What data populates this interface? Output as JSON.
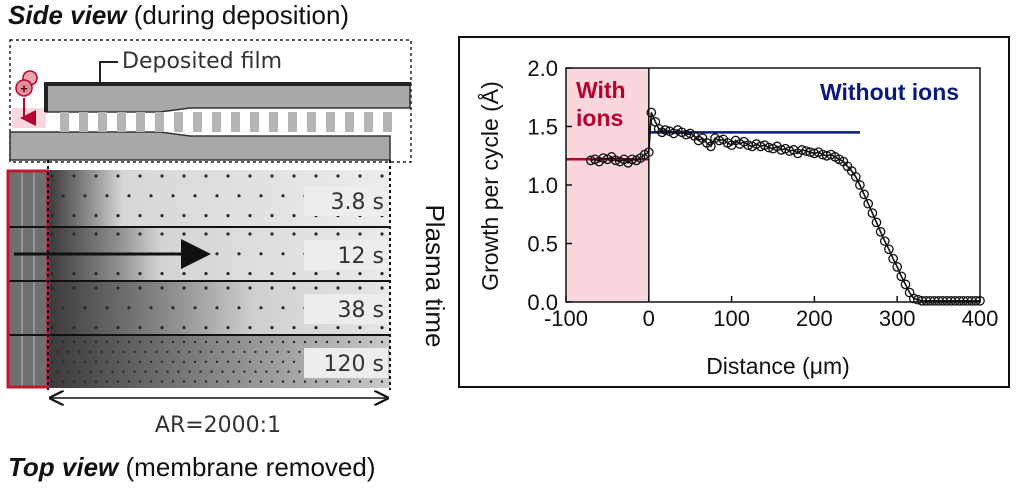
{
  "side_view": {
    "title_bold": "Side view",
    "title_rest": " (during deposition)",
    "film_label": "Deposited film",
    "ion_symbol": "+"
  },
  "top_view": {
    "title_bold": "Top view",
    "title_rest": " (membrane removed)",
    "time_labels": [
      "3.8 s",
      "12 s",
      "38 s",
      "120 s"
    ],
    "side_label": "Plasma time",
    "aspect_ratio": "AR=2000:1"
  },
  "colors": {
    "ions": "#b8002c",
    "no_ions": "#0a1a7a",
    "ion_region": "#f9d7dd",
    "ion_box": "#c2182f",
    "markers": "#111111"
  },
  "chart_data": {
    "type": "scatter",
    "xlabel": "Distance (μm)",
    "ylabel": "Growth per cycle (Å)",
    "xlim": [
      -100,
      400
    ],
    "ylim": [
      0.0,
      2.0
    ],
    "xticks": [
      "-100",
      "0",
      "100",
      "200",
      "300",
      "400"
    ],
    "yticks": [
      "0.0",
      "0.5",
      "1.0",
      "1.5",
      "2.0"
    ],
    "shaded_region": [
      -100,
      0
    ],
    "annotations": {
      "with_ions": [
        "With",
        "ions"
      ],
      "without_ions": "Without ions"
    },
    "reference_lines": [
      {
        "x": [
          -100,
          0
        ],
        "y": 1.22,
        "color": "#b8002c"
      },
      {
        "x": [
          0,
          255
        ],
        "y": 1.45,
        "color": "#0a1a7a"
      }
    ],
    "x": [
      -70,
      -65,
      -60,
      -55,
      -50,
      -45,
      -40,
      -35,
      -30,
      -25,
      -20,
      -15,
      -10,
      -5,
      0,
      3,
      8,
      12,
      16,
      20,
      25,
      30,
      35,
      40,
      45,
      50,
      55,
      60,
      65,
      70,
      75,
      80,
      85,
      90,
      95,
      100,
      105,
      110,
      115,
      120,
      125,
      130,
      135,
      140,
      145,
      150,
      155,
      160,
      165,
      170,
      175,
      180,
      185,
      190,
      195,
      200,
      205,
      210,
      215,
      220,
      225,
      230,
      235,
      240,
      245,
      250,
      255,
      260,
      265,
      270,
      275,
      280,
      285,
      290,
      295,
      300,
      305,
      310,
      315,
      320,
      325,
      330,
      335,
      340,
      345,
      350,
      355,
      360,
      365,
      370,
      375,
      380,
      385,
      390,
      395,
      400
    ],
    "y": [
      1.21,
      1.22,
      1.2,
      1.23,
      1.22,
      1.24,
      1.21,
      1.2,
      1.22,
      1.19,
      1.22,
      1.21,
      1.23,
      1.26,
      1.28,
      1.62,
      1.54,
      1.48,
      1.45,
      1.47,
      1.46,
      1.44,
      1.47,
      1.45,
      1.43,
      1.44,
      1.42,
      1.38,
      1.4,
      1.36,
      1.33,
      1.4,
      1.38,
      1.39,
      1.36,
      1.34,
      1.38,
      1.35,
      1.37,
      1.34,
      1.33,
      1.35,
      1.33,
      1.34,
      1.32,
      1.31,
      1.33,
      1.3,
      1.31,
      1.29,
      1.3,
      1.27,
      1.3,
      1.29,
      1.28,
      1.27,
      1.28,
      1.26,
      1.25,
      1.26,
      1.24,
      1.22,
      1.2,
      1.16,
      1.12,
      1.07,
      1.0,
      0.92,
      0.84,
      0.76,
      0.68,
      0.6,
      0.52,
      0.45,
      0.37,
      0.3,
      0.22,
      0.15,
      0.08,
      0.03,
      0.02,
      0.01,
      0.01,
      0.01,
      0.01,
      0.01,
      0.01,
      0.01,
      0.01,
      0.01,
      0.01,
      0.01,
      0.01,
      0.01,
      0.01,
      0.01
    ]
  }
}
